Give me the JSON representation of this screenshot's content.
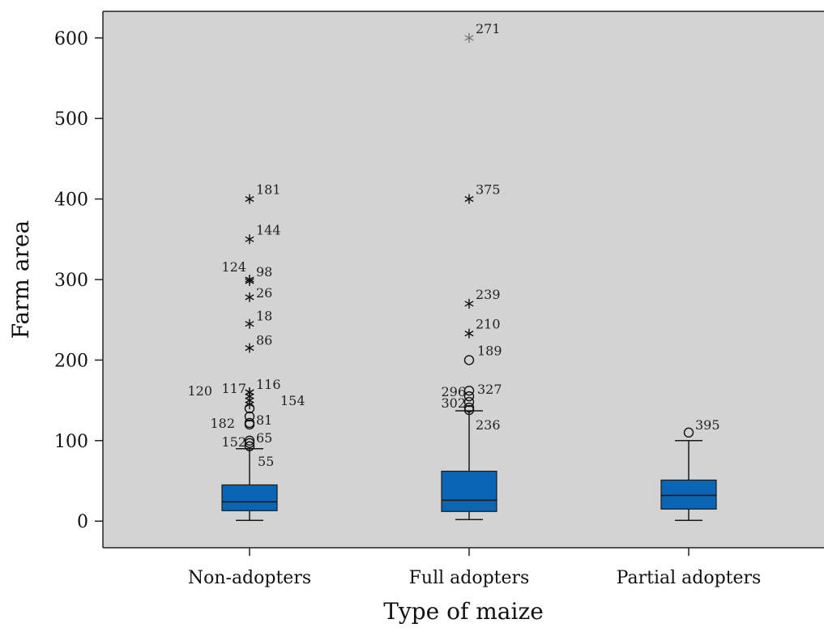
{
  "chart_data": {
    "type": "boxplot",
    "xlabel": "Type of maize",
    "ylabel": "Farm area",
    "ylim": [
      -33,
      633
    ],
    "yticks": [
      0,
      100,
      200,
      300,
      400,
      500,
      600
    ],
    "grid": false,
    "colors": {
      "plot_bg": "#d3d3d3",
      "box_fill": "#0a66b4",
      "box_stroke": "#1a1a1a",
      "frame": "#222222"
    },
    "categories": [
      "Non-adopters",
      "Full adopters",
      "Partial adopters"
    ],
    "boxes": [
      {
        "category": "Non-adopters",
        "whisker_low": 1,
        "q1": 13,
        "median": 24,
        "q3": 45,
        "whisker_high": 90,
        "outliers": [
          {
            "id": "181",
            "value": 400,
            "marker": "star"
          },
          {
            "id": "144",
            "value": 350,
            "marker": "star"
          },
          {
            "id": "98",
            "value": 300,
            "marker": "star"
          },
          {
            "id": "124",
            "value": 298,
            "marker": "star"
          },
          {
            "id": "26",
            "value": 278,
            "marker": "star"
          },
          {
            "id": "18",
            "value": 245,
            "marker": "star"
          },
          {
            "id": "86",
            "value": 215,
            "marker": "star"
          },
          {
            "id": "120",
            "value": 160,
            "marker": "star"
          },
          {
            "id": "116",
            "value": 160,
            "marker": "star"
          },
          {
            "id": "117",
            "value": 155,
            "marker": "star"
          },
          {
            "id": "154",
            "value": 150,
            "marker": "star"
          },
          {
            "value": 145,
            "marker": "star"
          },
          {
            "value": 140,
            "marker": "circle"
          },
          {
            "value": 130,
            "marker": "circle"
          },
          {
            "id": "81",
            "value": 122,
            "marker": "circle"
          },
          {
            "id": "182",
            "value": 120,
            "marker": "circle"
          },
          {
            "id": "65",
            "value": 100,
            "marker": "circle"
          },
          {
            "id": "152",
            "value": 97,
            "marker": "circle"
          },
          {
            "id": "55",
            "value": 93,
            "marker": "circle"
          }
        ]
      },
      {
        "category": "Full adopters",
        "whisker_low": 2,
        "q1": 12,
        "median": 26,
        "q3": 62,
        "whisker_high": 137,
        "outliers": [
          {
            "id": "271",
            "value": 600,
            "marker": "star"
          },
          {
            "id": "375",
            "value": 400,
            "marker": "star"
          },
          {
            "id": "239",
            "value": 270,
            "marker": "star"
          },
          {
            "id": "210",
            "value": 233,
            "marker": "star"
          },
          {
            "id": "189",
            "value": 200,
            "marker": "circle"
          },
          {
            "id": "327",
            "value": 162,
            "marker": "circle"
          },
          {
            "id": "296",
            "value": 155,
            "marker": "circle"
          },
          {
            "value": 148,
            "marker": "circle"
          },
          {
            "id": "302",
            "value": 141,
            "marker": "circle"
          },
          {
            "id": "236",
            "value": 138,
            "marker": "circle"
          }
        ]
      },
      {
        "category": "Partial adopters",
        "whisker_low": 1,
        "q1": 15,
        "median": 32,
        "q3": 51,
        "whisker_high": 100,
        "outliers": [
          {
            "id": "395",
            "value": 110,
            "marker": "circle"
          }
        ]
      }
    ]
  }
}
